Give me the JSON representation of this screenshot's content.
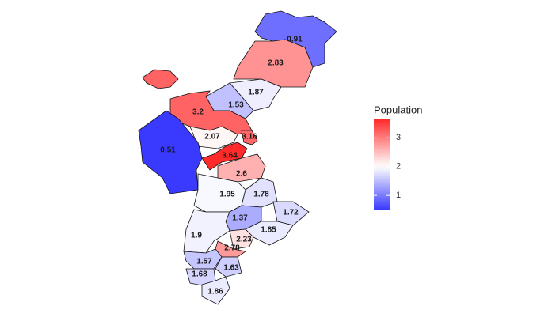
{
  "chart_data": {
    "type": "choropleth",
    "legend_title": "Population",
    "values": [
      0.91,
      2.83,
      1.87,
      1.53,
      3.2,
      2.07,
      0.51,
      3.16,
      3.64,
      2.6,
      1.95,
      1.78,
      1.37,
      1.72,
      1.85,
      1.9,
      2.23,
      2.78,
      1.57,
      1.68,
      1.63,
      1.86
    ],
    "color_scale": {
      "low": "#3a3aff",
      "mid": "#ffffff",
      "high": "#ff2a2a",
      "midpoint": 2,
      "limits": [
        0.51,
        3.64
      ]
    },
    "ticks": [
      1,
      2,
      3
    ]
  }
}
